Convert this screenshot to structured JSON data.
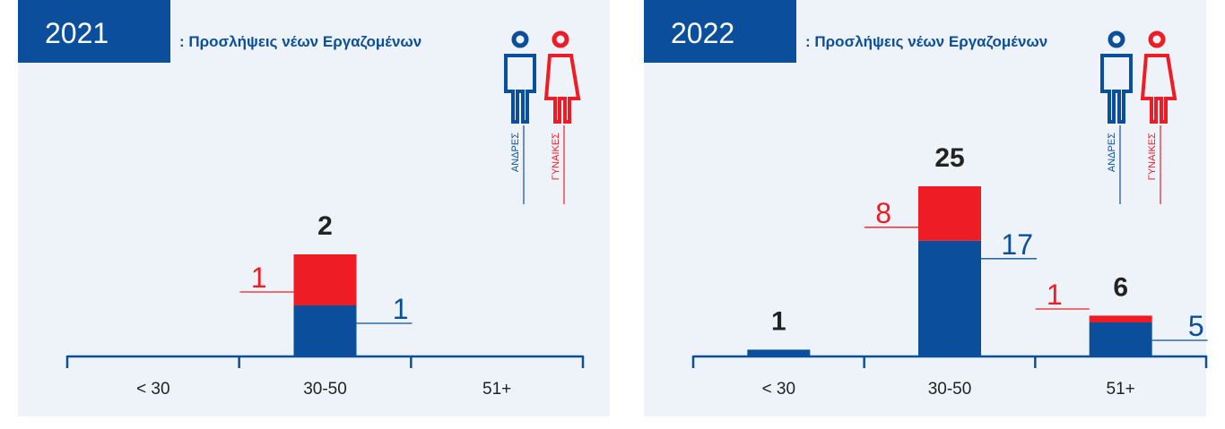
{
  "chart_data": [
    {
      "type": "stacked-bar",
      "title": "2021",
      "subtitle": ": Προσλήψεις νέων Εργαζομένων",
      "categories": [
        "< 30",
        "30-50",
        "51+"
      ],
      "series": [
        {
          "name": "ΑΝΔΡΕΣ",
          "color": "#0b4f9c",
          "values": [
            0,
            1,
            0
          ]
        },
        {
          "name": "ΓΥΝΑΙΚΕΣ",
          "color": "#ee1c25",
          "values": [
            0,
            1,
            0
          ]
        }
      ],
      "totals": [
        null,
        2,
        null
      ],
      "segment_labels": [
        false,
        true,
        false
      ],
      "ylim": [
        0,
        6
      ]
    },
    {
      "type": "stacked-bar",
      "title": "2022",
      "subtitle": ": Προσλήψεις νέων Εργαζομένων",
      "categories": [
        "< 30",
        "30-50",
        "51+"
      ],
      "series": [
        {
          "name": "ΑΝΔΡΕΣ",
          "color": "#0b4f9c",
          "values": [
            1,
            17,
            5
          ]
        },
        {
          "name": "ΓΥΝΑΙΚΕΣ",
          "color": "#ee1c25",
          "values": [
            0,
            8,
            1
          ]
        }
      ],
      "totals": [
        1,
        25,
        6
      ],
      "segment_labels": [
        false,
        true,
        true
      ],
      "ylim": [
        0,
        45
      ]
    }
  ]
}
